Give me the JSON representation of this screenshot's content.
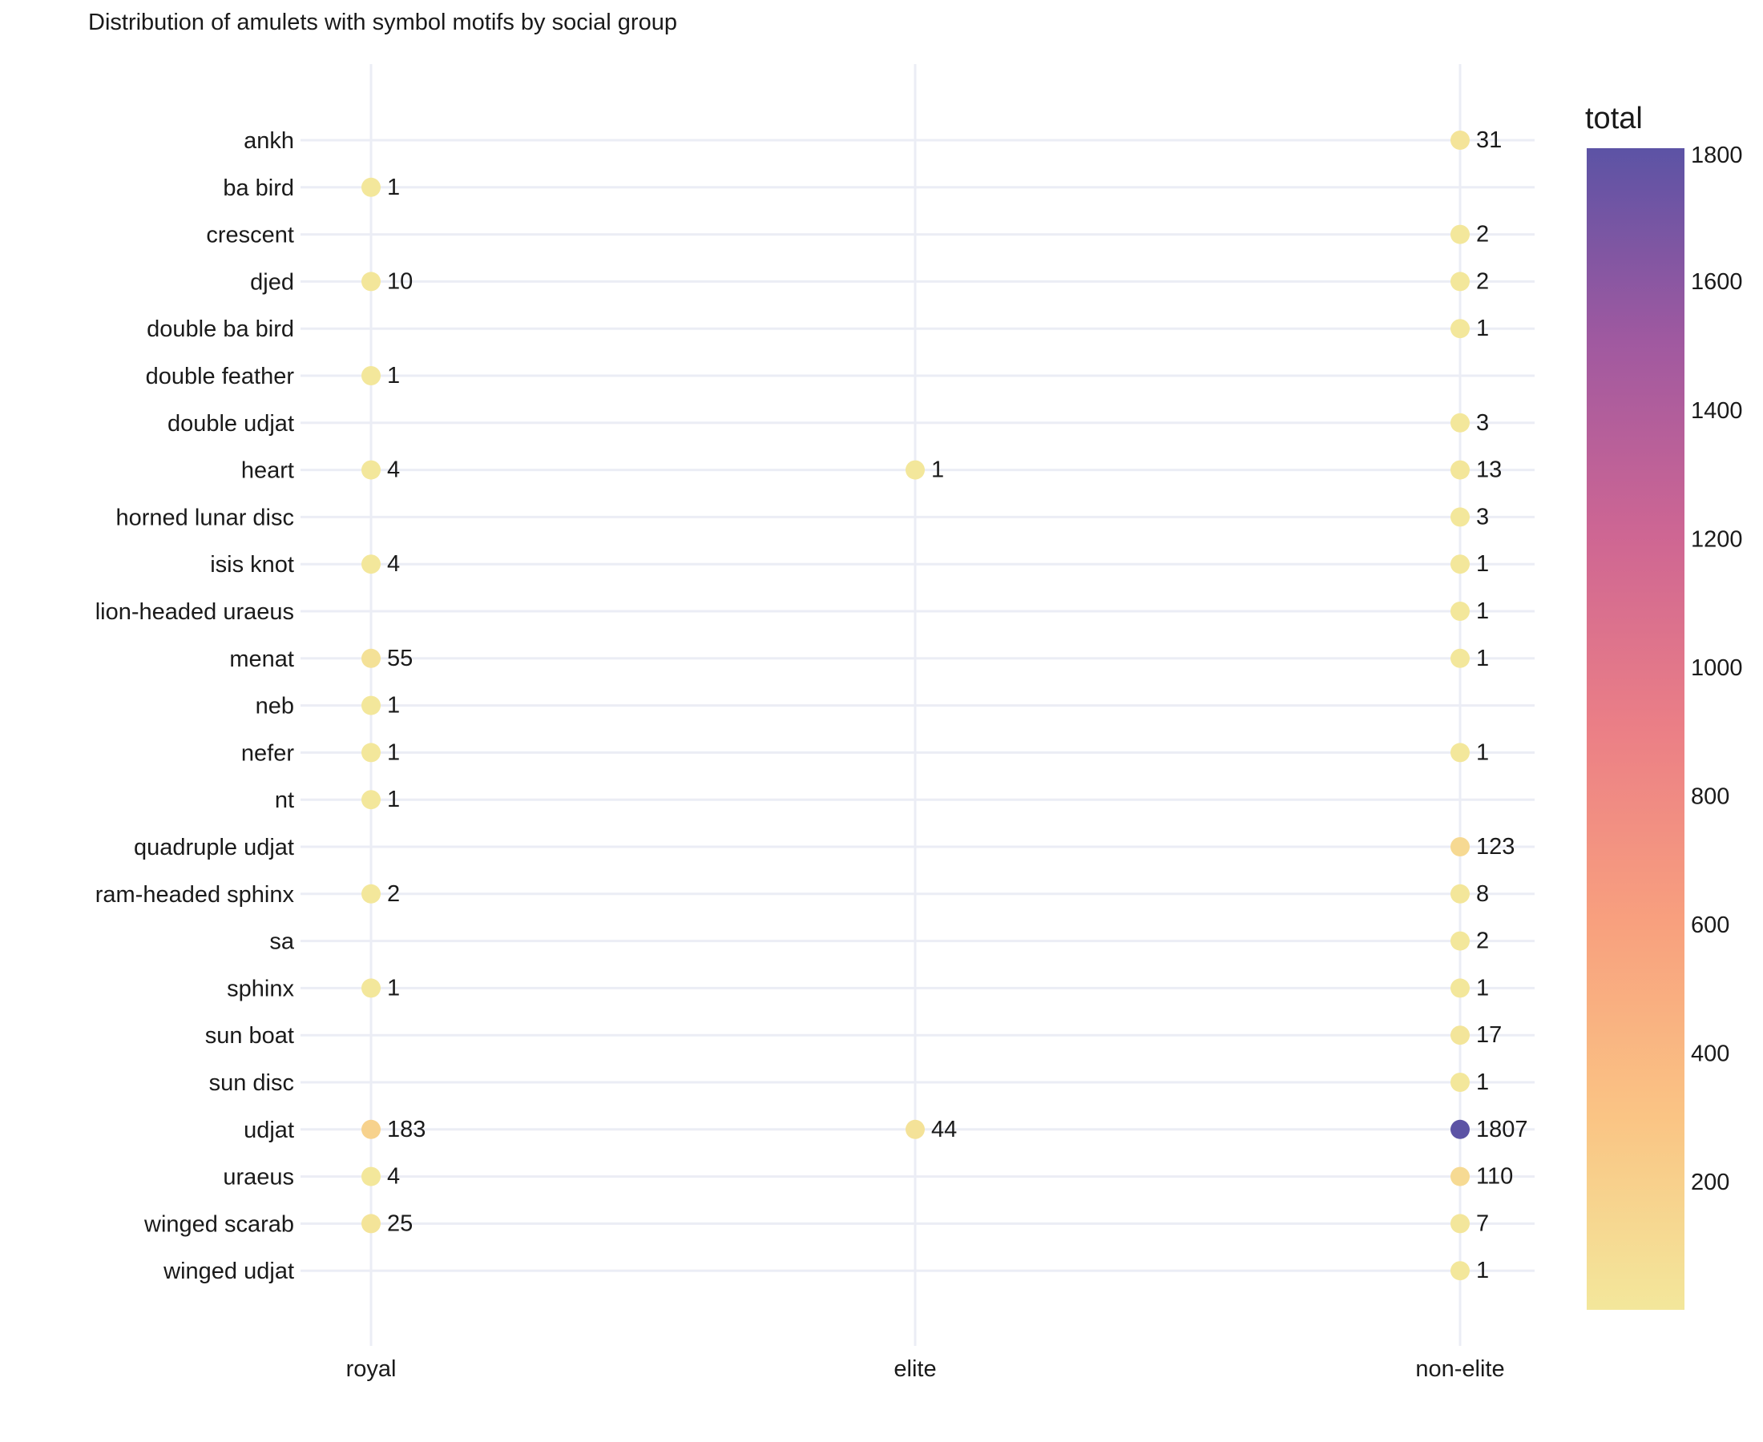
{
  "chart_data": {
    "type": "scatter",
    "title": "Distribution of amulets with symbol motifs by social group",
    "xlabel": "",
    "ylabel": "",
    "x_categories": [
      "royal",
      "elite",
      "non-elite"
    ],
    "y_categories": [
      "ankh",
      "ba bird",
      "crescent",
      "djed",
      "double ba bird",
      "double feather",
      "double udjat",
      "heart",
      "horned lunar disc",
      "isis knot",
      "lion-headed uraeus",
      "menat",
      "neb",
      "nefer",
      "nt",
      "quadruple udjat",
      "ram-headed sphinx",
      "sa",
      "sphinx",
      "sun boat",
      "sun disc",
      "udjat",
      "uraeus",
      "winged scarab",
      "winged udjat"
    ],
    "points": [
      {
        "x": "non-elite",
        "y": "ankh",
        "value": 31
      },
      {
        "x": "royal",
        "y": "ba bird",
        "value": 1
      },
      {
        "x": "non-elite",
        "y": "crescent",
        "value": 2
      },
      {
        "x": "royal",
        "y": "djed",
        "value": 10
      },
      {
        "x": "non-elite",
        "y": "djed",
        "value": 2
      },
      {
        "x": "non-elite",
        "y": "double ba bird",
        "value": 1
      },
      {
        "x": "royal",
        "y": "double feather",
        "value": 1
      },
      {
        "x": "non-elite",
        "y": "double udjat",
        "value": 3
      },
      {
        "x": "royal",
        "y": "heart",
        "value": 4
      },
      {
        "x": "elite",
        "y": "heart",
        "value": 1
      },
      {
        "x": "non-elite",
        "y": "heart",
        "value": 13
      },
      {
        "x": "non-elite",
        "y": "horned lunar disc",
        "value": 3
      },
      {
        "x": "royal",
        "y": "isis knot",
        "value": 4
      },
      {
        "x": "non-elite",
        "y": "isis knot",
        "value": 1
      },
      {
        "x": "non-elite",
        "y": "lion-headed uraeus",
        "value": 1
      },
      {
        "x": "royal",
        "y": "menat",
        "value": 55
      },
      {
        "x": "non-elite",
        "y": "menat",
        "value": 1
      },
      {
        "x": "royal",
        "y": "neb",
        "value": 1
      },
      {
        "x": "royal",
        "y": "nefer",
        "value": 1
      },
      {
        "x": "non-elite",
        "y": "nefer",
        "value": 1
      },
      {
        "x": "royal",
        "y": "nt",
        "value": 1
      },
      {
        "x": "non-elite",
        "y": "quadruple udjat",
        "value": 123
      },
      {
        "x": "royal",
        "y": "ram-headed sphinx",
        "value": 2
      },
      {
        "x": "non-elite",
        "y": "ram-headed sphinx",
        "value": 8
      },
      {
        "x": "non-elite",
        "y": "sa",
        "value": 2
      },
      {
        "x": "royal",
        "y": "sphinx",
        "value": 1
      },
      {
        "x": "non-elite",
        "y": "sphinx",
        "value": 1
      },
      {
        "x": "non-elite",
        "y": "sun boat",
        "value": 17
      },
      {
        "x": "non-elite",
        "y": "sun disc",
        "value": 1
      },
      {
        "x": "royal",
        "y": "udjat",
        "value": 183
      },
      {
        "x": "elite",
        "y": "udjat",
        "value": 44
      },
      {
        "x": "non-elite",
        "y": "udjat",
        "value": 1807
      },
      {
        "x": "royal",
        "y": "uraeus",
        "value": 4
      },
      {
        "x": "non-elite",
        "y": "uraeus",
        "value": 110
      },
      {
        "x": "royal",
        "y": "winged scarab",
        "value": 25
      },
      {
        "x": "non-elite",
        "y": "winged scarab",
        "value": 7
      },
      {
        "x": "non-elite",
        "y": "winged udjat",
        "value": 1
      }
    ],
    "colorbar": {
      "title": "total",
      "range": [
        1,
        1807
      ],
      "ticks": [
        200,
        400,
        600,
        800,
        1000,
        1200,
        1400,
        1600,
        1800
      ],
      "colors": [
        "#f3e79b",
        "#fac484",
        "#f8a07e",
        "#eb7f86",
        "#ce6693",
        "#a059a0",
        "#5c53a5"
      ]
    },
    "grid": true,
    "gridColor": "#ebedf5"
  }
}
